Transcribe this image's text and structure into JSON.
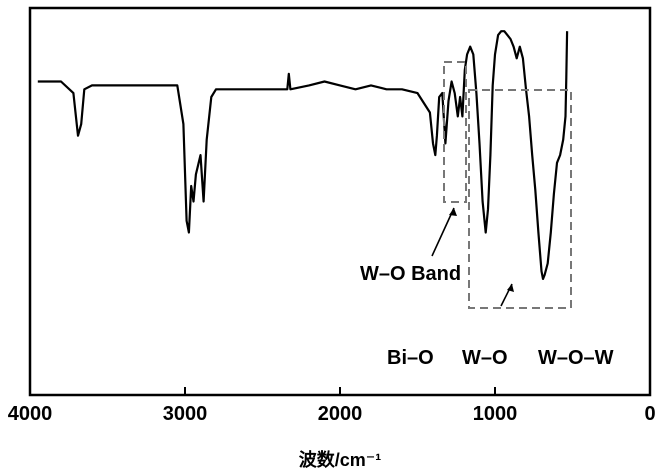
{
  "chart_data": {
    "type": "line",
    "title": "",
    "xlabel": "波数/cm⁻¹",
    "ylabel": "",
    "xlim": [
      4000,
      0
    ],
    "x_reversed": true,
    "xticks": [
      4000,
      3000,
      2000,
      1000,
      0
    ],
    "xtick_labels": [
      "4000",
      "3000",
      "2000",
      "1000",
      "0"
    ],
    "ylim": [
      0,
      100
    ],
    "grid": false,
    "legend": "none",
    "line_color": "#000000",
    "series": [
      {
        "x": [
          3950,
          3800,
          3720,
          3690,
          3670,
          3650,
          3600,
          3400,
          3200,
          3050,
          3010,
          2990,
          2975,
          2960,
          2945,
          2930,
          2900,
          2880,
          2860,
          2830,
          2800,
          2700,
          2500,
          2340,
          2330,
          2320,
          2200,
          2100,
          2000,
          1900,
          1800,
          1700,
          1600,
          1500,
          1420,
          1400,
          1385,
          1375,
          1360,
          1340,
          1320,
          1300,
          1280,
          1260,
          1240,
          1225,
          1210,
          1195,
          1180,
          1160,
          1140,
          1120,
          1100,
          1080,
          1060,
          1045,
          1030,
          1015,
          1000,
          980,
          960,
          940,
          920,
          900,
          880,
          860,
          840,
          820,
          800,
          780,
          760,
          740,
          720,
          700,
          690,
          680,
          660,
          640,
          620,
          600,
          580,
          560,
          545,
          540,
          535
        ],
        "y": [
          81,
          81,
          78,
          67,
          70,
          79,
          80,
          80,
          80,
          80,
          70,
          45,
          42,
          54,
          50,
          57,
          62,
          50,
          66,
          77,
          79,
          79,
          79,
          79,
          83,
          79,
          80,
          81,
          80,
          79,
          80,
          79,
          79,
          78,
          73,
          65,
          62,
          67,
          77,
          78,
          65,
          76,
          81,
          78,
          72,
          77,
          72,
          84,
          88,
          90,
          88,
          78,
          65,
          50,
          42,
          48,
          62,
          80,
          88,
          93,
          94,
          94,
          93,
          92,
          90,
          87,
          90,
          87,
          79,
          72,
          62,
          53,
          42,
          32,
          30,
          31,
          34,
          42,
          52,
          60,
          62,
          66,
          72,
          82,
          94
        ]
      }
    ],
    "annotations": {
      "w_o_band": "W–O Band",
      "bi_o": "Bi–O",
      "w_o": "W–O",
      "w_o_w": "W–O–W"
    }
  }
}
